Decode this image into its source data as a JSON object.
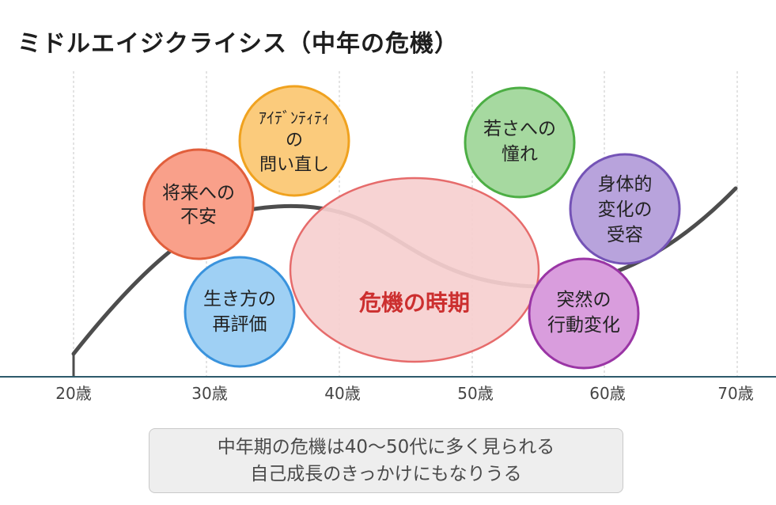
{
  "title": "ミドルエイジクライシス（中年の危機）",
  "axis_ticks": [
    "20歳",
    "30歳",
    "40歳",
    "50歳",
    "60歳",
    "70歳"
  ],
  "crisis_label": "危機の時期",
  "bubbles": [
    {
      "id": "future-anxiety",
      "lines": [
        "将来への",
        "不安"
      ],
      "color": "#f9a08a",
      "border": "#e15f3c"
    },
    {
      "id": "identity",
      "lines": [
        "ｱｲﾃﾞﾝﾃｨﾃｨ",
        "の",
        "問い直し"
      ],
      "color": "#fbcb7c",
      "border": "#f0a21f"
    },
    {
      "id": "way-of-life",
      "lines": [
        "生き方の",
        "再評価"
      ],
      "color": "#9fd0f4",
      "border": "#3a93dd"
    },
    {
      "id": "youth-longing",
      "lines": [
        "若さへの",
        "憧れ"
      ],
      "color": "#a6d9a0",
      "border": "#4cae44"
    },
    {
      "id": "body-change",
      "lines": [
        "身体的",
        "変化の",
        "受容"
      ],
      "color": "#b8a3dc",
      "border": "#7453b6"
    },
    {
      "id": "sudden-change",
      "lines": [
        "突然の",
        "行動変化"
      ],
      "color": "#d99ddd",
      "border": "#9a35a5"
    }
  ],
  "note": {
    "line1": "中年期の危機は40〜50代に多く見られる",
    "line2": "自己成長のきっかけにもなりうる"
  },
  "colors": {
    "curve": "#4d4d4d",
    "axis": "#2d5a6b",
    "grid": "#c7c7c7",
    "crisis_fill": "#f6cfcf",
    "crisis_border": "#e66b6b",
    "crisis_text": "#cc2f2f"
  }
}
